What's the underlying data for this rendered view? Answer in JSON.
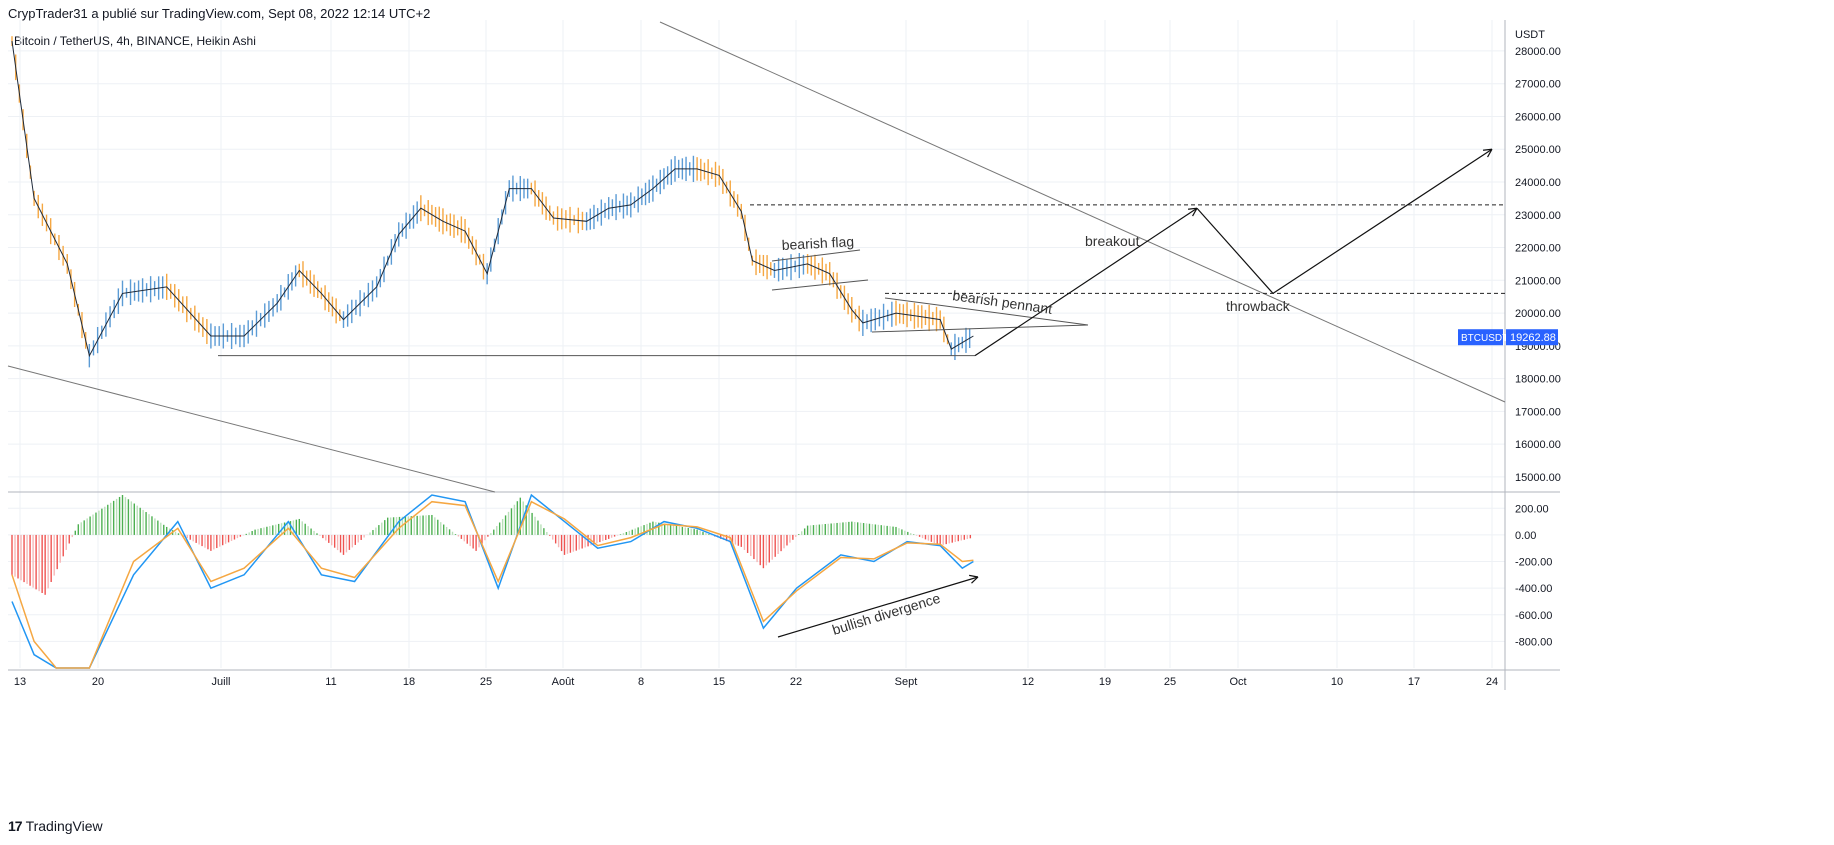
{
  "header": {
    "publisher_line": "CrypTrader31 a publié sur TradingView.com, Sept 08, 2022 12:14 UTC+2"
  },
  "symbol_line": "Bitcoin / TetherUS, 4h, BINANCE, Heikin Ashi",
  "footer": {
    "brand": "TradingView",
    "logo_text": "17"
  },
  "price_tag": {
    "symbol": "BTCUSDT",
    "value": "19262.88"
  },
  "chart_data": [
    {
      "type": "line",
      "title": "Bitcoin / TetherUS, 4h, BINANCE, Heikin Ashi",
      "ylabel": "USDT",
      "ylim": [
        14600,
        28700
      ],
      "y_ticks": [
        "28000.00",
        "27000.00",
        "26000.00",
        "25000.00",
        "24000.00",
        "23000.00",
        "22000.00",
        "21000.00",
        "20000.00",
        "19000.00",
        "18000.00",
        "17000.00",
        "16000.00",
        "15000.00"
      ],
      "x_ticks": [
        "13",
        "20",
        "Juill",
        "11",
        "18",
        "25",
        "Août",
        "8",
        "15",
        "22",
        "Sept",
        "12",
        "19",
        "25",
        "Oct",
        "10",
        "17",
        "24"
      ],
      "grid": true,
      "series": [
        {
          "name": "BTCUSDT",
          "x": [
            "Jun 13",
            "Jun 15",
            "Jun 18",
            "Jun 20",
            "Jun 23",
            "Jun 27",
            "Jul 1",
            "Jul 4",
            "Jul 7",
            "Jul 9",
            "Jul 11",
            "Jul 13",
            "Jul 16",
            "Jul 18",
            "Jul 20",
            "Jul 22",
            "Jul 24",
            "Jul 26",
            "Jul 28",
            "Jul 30",
            "Aug 1",
            "Aug 4",
            "Aug 6",
            "Aug 8",
            "Aug 10",
            "Aug 12",
            "Aug 14",
            "Aug 16",
            "Aug 18",
            "Aug 19",
            "Aug 21",
            "Aug 24",
            "Aug 26",
            "Aug 28",
            "Aug 29",
            "Sep 1",
            "Sep 3",
            "Sep 5",
            "Sep 6",
            "Sep 7",
            "Sep 8"
          ],
          "values": [
            28300,
            23500,
            21500,
            18700,
            20600,
            20800,
            19300,
            19300,
            20300,
            21300,
            20600,
            19800,
            20800,
            22400,
            23200,
            22800,
            22500,
            21200,
            23800,
            23800,
            22900,
            22800,
            23200,
            23300,
            23800,
            24400,
            24400,
            24200,
            23100,
            21600,
            21300,
            21500,
            21200,
            20100,
            19700,
            20000,
            19900,
            19800,
            18900,
            19100,
            19300
          ]
        }
      ],
      "levels": {
        "resistance_dashed": 23300,
        "pennant_top_dashed": 20600,
        "support": 18700
      },
      "projection": {
        "x": [
          "Sep 8",
          "Sep 27",
          "Oct 3",
          "Oct 24"
        ],
        "values": [
          18700,
          23200,
          20600,
          25000
        ]
      },
      "annotations": [
        "bearish flag",
        "bearish pennant",
        "breakout",
        "throwback",
        "bullish divergence"
      ]
    },
    {
      "type": "line",
      "title": "",
      "ylim": [
        -1000,
        300
      ],
      "y_ticks": [
        "200.00",
        "0.00",
        "-200.00",
        "-400.00",
        "-600.00",
        "-800.00"
      ],
      "series": [
        {
          "name": "",
          "x": [
            "Jun 13",
            "Jun 15",
            "Jun 17",
            "Jun 20",
            "Jun 24",
            "Jun 28",
            "Jul 1",
            "Jul 4",
            "Jul 8",
            "Jul 11",
            "Jul 14",
            "Jul 18",
            "Jul 21",
            "Jul 24",
            "Jul 27",
            "Jul 30",
            "Aug 2",
            "Aug 5",
            "Aug 8",
            "Aug 11",
            "Aug 14",
            "Aug 17",
            "Aug 20",
            "Aug 23",
            "Aug 27",
            "Aug 30",
            "Sep 2",
            "Sep 5",
            "Sep 7",
            "Sep 8"
          ],
          "values": [
            -500,
            -900,
            -1000,
            -1000,
            -300,
            100,
            -400,
            -300,
            100,
            -300,
            -350,
            100,
            300,
            250,
            -400,
            300,
            100,
            -100,
            -50,
            100,
            50,
            -50,
            -700,
            -400,
            -150,
            -200,
            -50,
            -80,
            -250,
            -200
          ]
        },
        {
          "name": "",
          "x": [
            "Jun 13",
            "Jun 15",
            "Jun 17",
            "Jun 20",
            "Jun 24",
            "Jun 28",
            "Jul 1",
            "Jul 4",
            "Jul 8",
            "Jul 11",
            "Jul 14",
            "Jul 18",
            "Jul 21",
            "Jul 24",
            "Jul 27",
            "Jul 30",
            "Aug 2",
            "Aug 5",
            "Aug 8",
            "Aug 11",
            "Aug 14",
            "Aug 17",
            "Aug 20",
            "Aug 23",
            "Aug 27",
            "Aug 30",
            "Sep 2",
            "Sep 5",
            "Sep 7",
            "Sep 8"
          ],
          "values": [
            -300,
            -800,
            -1000,
            -1000,
            -200,
            50,
            -350,
            -250,
            50,
            -250,
            -320,
            50,
            250,
            220,
            -350,
            250,
            120,
            -80,
            -20,
            80,
            60,
            -20,
            -650,
            -420,
            -170,
            -180,
            -60,
            -70,
            -200,
            -190
          ]
        }
      ],
      "histogram": {
        "x": [
          "Jun 13",
          "Jun 16",
          "Jun 19",
          "Jun 23",
          "Jun 27",
          "Jul 1",
          "Jul 5",
          "Jul 9",
          "Jul 13",
          "Jul 17",
          "Jul 21",
          "Jul 25",
          "Jul 29",
          "Aug 2",
          "Aug 6",
          "Aug 10",
          "Aug 14",
          "Aug 18",
          "Aug 20",
          "Aug 24",
          "Aug 28",
          "Sep 1",
          "Sep 5",
          "Sep 8"
        ],
        "values": [
          -300,
          -450,
          80,
          300,
          60,
          -120,
          40,
          120,
          -150,
          130,
          150,
          -120,
          280,
          -150,
          -30,
          100,
          40,
          -90,
          -250,
          70,
          100,
          60,
          -80,
          -20
        ]
      }
    }
  ]
}
